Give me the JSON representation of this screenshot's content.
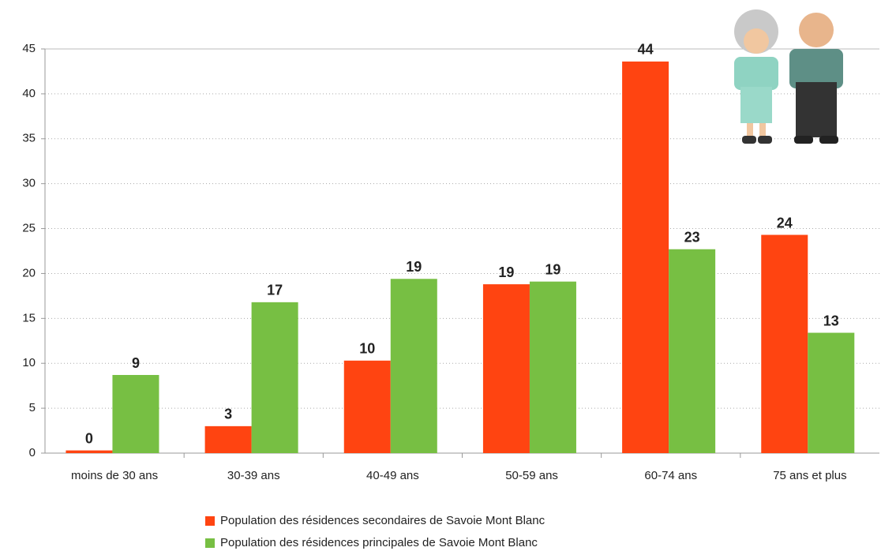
{
  "chart_data": {
    "type": "bar",
    "categories": [
      "moins de 30 ans",
      "30-39 ans",
      "40-49 ans",
      "50-59 ans",
      "60-74 ans",
      "75 ans et plus"
    ],
    "series": [
      {
        "name": "Population des résidences secondaires de Savoie Mont Blanc",
        "color": "#ff4411",
        "values": [
          0.3,
          3,
          10.3,
          18.8,
          43.6,
          24.3
        ],
        "value_labels": [
          "0",
          "3",
          "10",
          "19",
          "44",
          "24"
        ]
      },
      {
        "name": "Population des résidences principales de Savoie Mont Blanc",
        "color": "#77bf43",
        "values": [
          8.7,
          16.8,
          19.4,
          19.1,
          22.7,
          13.4
        ],
        "value_labels": [
          "9",
          "17",
          "19",
          "19",
          "23",
          "13"
        ]
      }
    ],
    "ylim": [
      0,
      45
    ],
    "yticks": [
      0,
      5,
      10,
      15,
      20,
      25,
      30,
      35,
      40,
      45
    ],
    "grid": true,
    "legend": "bottom"
  }
}
